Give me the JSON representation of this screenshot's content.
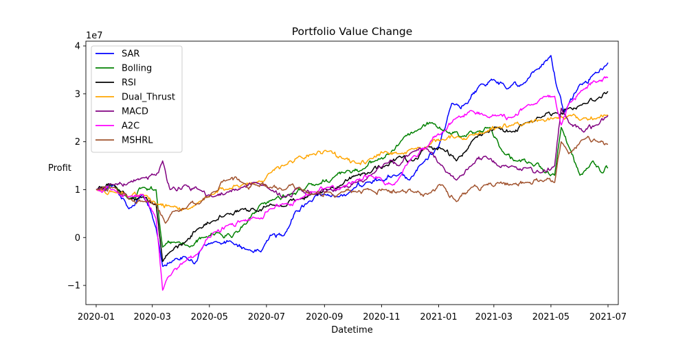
{
  "chart_data": {
    "type": "line",
    "title": "Portfolio Value Change",
    "xlabel": "Datetime",
    "ylabel": "Profit",
    "y_scale_label": "1e7",
    "x_range": [
      "2019-12-21",
      "2021-07-12"
    ],
    "ylim": [
      -1.4,
      4.1
    ],
    "y_unit_multiplier": 10000000,
    "grid": false,
    "legend_position": "upper-left",
    "x_ticks": [
      "2020-01",
      "2020-03",
      "2020-05",
      "2020-07",
      "2020-09",
      "2020-11",
      "2021-01",
      "2021-03",
      "2021-05",
      "2021-07"
    ],
    "y_ticks": [
      -1,
      0,
      1,
      2,
      3,
      4
    ],
    "y_tick_labels": [
      "−1",
      "0",
      "1",
      "2",
      "3",
      "4"
    ],
    "series": [
      {
        "name": "SAR",
        "color": "#0000ff",
        "points": [
          [
            "2020-01-01",
            1.0
          ],
          [
            "2020-01-20",
            1.1
          ],
          [
            "2020-02-05",
            0.6
          ],
          [
            "2020-02-20",
            0.9
          ],
          [
            "2020-03-05",
            0.2
          ],
          [
            "2020-03-12",
            -0.6
          ],
          [
            "2020-03-25",
            -0.45
          ],
          [
            "2020-04-05",
            -0.4
          ],
          [
            "2020-04-15",
            -0.55
          ],
          [
            "2020-04-25",
            -0.15
          ],
          [
            "2020-05-10",
            -0.1
          ],
          [
            "2020-05-25",
            -0.1
          ],
          [
            "2020-06-10",
            -0.25
          ],
          [
            "2020-06-25",
            -0.3
          ],
          [
            "2020-07-05",
            0.05
          ],
          [
            "2020-07-20",
            0.05
          ],
          [
            "2020-08-01",
            0.55
          ],
          [
            "2020-08-15",
            0.75
          ],
          [
            "2020-09-01",
            0.9
          ],
          [
            "2020-09-15",
            0.85
          ],
          [
            "2020-10-01",
            1.0
          ],
          [
            "2020-10-15",
            1.15
          ],
          [
            "2020-11-01",
            1.2
          ],
          [
            "2020-11-15",
            1.3
          ],
          [
            "2020-12-01",
            1.2
          ],
          [
            "2020-12-15",
            1.55
          ],
          [
            "2021-01-01",
            1.9
          ],
          [
            "2021-01-15",
            2.8
          ],
          [
            "2021-02-01",
            2.8
          ],
          [
            "2021-02-15",
            3.2
          ],
          [
            "2021-03-01",
            3.3
          ],
          [
            "2021-03-15",
            3.1
          ],
          [
            "2021-04-01",
            3.2
          ],
          [
            "2021-04-15",
            3.5
          ],
          [
            "2021-05-01",
            3.8
          ],
          [
            "2021-05-08",
            3.1
          ],
          [
            "2021-05-15",
            2.6
          ],
          [
            "2021-06-01",
            3.2
          ],
          [
            "2021-06-15",
            3.4
          ],
          [
            "2021-07-01",
            3.65
          ]
        ]
      },
      {
        "name": "Bolling",
        "color": "#008000",
        "points": [
          [
            "2020-01-01",
            1.0
          ],
          [
            "2020-01-20",
            1.1
          ],
          [
            "2020-02-05",
            0.8
          ],
          [
            "2020-02-20",
            1.05
          ],
          [
            "2020-03-05",
            1.0
          ],
          [
            "2020-03-12",
            -0.2
          ],
          [
            "2020-03-25",
            -0.1
          ],
          [
            "2020-04-10",
            -0.2
          ],
          [
            "2020-04-25",
            0.0
          ],
          [
            "2020-05-10",
            0.1
          ],
          [
            "2020-05-25",
            0.0
          ],
          [
            "2020-06-10",
            0.3
          ],
          [
            "2020-06-25",
            0.7
          ],
          [
            "2020-07-10",
            0.8
          ],
          [
            "2020-07-25",
            0.9
          ],
          [
            "2020-08-10",
            1.0
          ],
          [
            "2020-08-25",
            1.1
          ],
          [
            "2020-09-10",
            1.25
          ],
          [
            "2020-09-25",
            1.4
          ],
          [
            "2020-10-10",
            1.4
          ],
          [
            "2020-10-25",
            1.6
          ],
          [
            "2020-11-10",
            1.75
          ],
          [
            "2020-11-25",
            2.1
          ],
          [
            "2020-12-10",
            2.25
          ],
          [
            "2020-12-25",
            2.4
          ],
          [
            "2021-01-10",
            2.2
          ],
          [
            "2021-01-25",
            2.1
          ],
          [
            "2021-02-10",
            2.2
          ],
          [
            "2021-02-25",
            2.3
          ],
          [
            "2021-03-10",
            1.8
          ],
          [
            "2021-03-25",
            1.6
          ],
          [
            "2021-04-10",
            1.55
          ],
          [
            "2021-04-25",
            1.35
          ],
          [
            "2021-05-05",
            1.3
          ],
          [
            "2021-05-12",
            2.3
          ],
          [
            "2021-05-20",
            1.9
          ],
          [
            "2021-06-01",
            1.3
          ],
          [
            "2021-06-15",
            1.6
          ],
          [
            "2021-06-25",
            1.35
          ],
          [
            "2021-07-01",
            1.45
          ]
        ]
      },
      {
        "name": "RSI",
        "color": "#000000",
        "points": [
          [
            "2020-01-01",
            1.0
          ],
          [
            "2020-01-20",
            1.1
          ],
          [
            "2020-02-05",
            0.8
          ],
          [
            "2020-02-20",
            0.85
          ],
          [
            "2020-03-05",
            0.7
          ],
          [
            "2020-03-12",
            -0.5
          ],
          [
            "2020-03-20",
            -0.3
          ],
          [
            "2020-04-05",
            -0.1
          ],
          [
            "2020-04-20",
            0.2
          ],
          [
            "2020-05-05",
            0.35
          ],
          [
            "2020-05-20",
            0.5
          ],
          [
            "2020-06-05",
            0.6
          ],
          [
            "2020-06-20",
            0.55
          ],
          [
            "2020-07-05",
            0.7
          ],
          [
            "2020-07-20",
            0.65
          ],
          [
            "2020-08-05",
            0.8
          ],
          [
            "2020-08-20",
            0.9
          ],
          [
            "2020-09-05",
            1.0
          ],
          [
            "2020-09-20",
            1.1
          ],
          [
            "2020-10-05",
            1.3
          ],
          [
            "2020-10-20",
            1.35
          ],
          [
            "2020-11-05",
            1.5
          ],
          [
            "2020-11-20",
            1.7
          ],
          [
            "2020-12-05",
            1.6
          ],
          [
            "2020-12-20",
            1.9
          ],
          [
            "2021-01-05",
            1.85
          ],
          [
            "2021-01-20",
            1.6
          ],
          [
            "2021-02-05",
            2.0
          ],
          [
            "2021-02-20",
            2.2
          ],
          [
            "2021-03-05",
            2.3
          ],
          [
            "2021-03-20",
            2.2
          ],
          [
            "2021-04-05",
            2.4
          ],
          [
            "2021-04-20",
            2.5
          ],
          [
            "2021-05-05",
            2.6
          ],
          [
            "2021-05-20",
            2.7
          ],
          [
            "2021-06-05",
            2.8
          ],
          [
            "2021-06-20",
            2.9
          ],
          [
            "2021-07-01",
            3.05
          ]
        ]
      },
      {
        "name": "Dual_Thrust",
        "color": "#ffa500",
        "points": [
          [
            "2020-01-01",
            1.0
          ],
          [
            "2020-01-20",
            0.95
          ],
          [
            "2020-02-05",
            0.85
          ],
          [
            "2020-02-20",
            0.9
          ],
          [
            "2020-03-05",
            0.7
          ],
          [
            "2020-03-20",
            0.65
          ],
          [
            "2020-04-05",
            0.6
          ],
          [
            "2020-04-20",
            0.75
          ],
          [
            "2020-05-05",
            0.9
          ],
          [
            "2020-05-20",
            1.0
          ],
          [
            "2020-06-05",
            1.1
          ],
          [
            "2020-06-20",
            1.15
          ],
          [
            "2020-07-05",
            1.35
          ],
          [
            "2020-07-20",
            1.5
          ],
          [
            "2020-08-05",
            1.7
          ],
          [
            "2020-08-20",
            1.75
          ],
          [
            "2020-09-05",
            1.8
          ],
          [
            "2020-09-20",
            1.65
          ],
          [
            "2020-10-05",
            1.55
          ],
          [
            "2020-10-20",
            1.65
          ],
          [
            "2020-11-05",
            1.8
          ],
          [
            "2020-11-20",
            1.75
          ],
          [
            "2020-12-05",
            1.85
          ],
          [
            "2020-12-20",
            1.9
          ],
          [
            "2021-01-05",
            2.05
          ],
          [
            "2021-01-20",
            2.1
          ],
          [
            "2021-02-05",
            2.15
          ],
          [
            "2021-02-20",
            2.2
          ],
          [
            "2021-03-05",
            2.3
          ],
          [
            "2021-03-20",
            2.35
          ],
          [
            "2021-04-05",
            2.4
          ],
          [
            "2021-04-20",
            2.45
          ],
          [
            "2021-05-05",
            2.5
          ],
          [
            "2021-05-20",
            2.55
          ],
          [
            "2021-06-05",
            2.5
          ],
          [
            "2021-06-20",
            2.5
          ],
          [
            "2021-07-01",
            2.55
          ]
        ]
      },
      {
        "name": "MACD",
        "color": "#800080",
        "points": [
          [
            "2020-01-01",
            1.0
          ],
          [
            "2020-01-20",
            1.1
          ],
          [
            "2020-02-05",
            1.15
          ],
          [
            "2020-02-20",
            1.25
          ],
          [
            "2020-03-05",
            1.3
          ],
          [
            "2020-03-12",
            1.6
          ],
          [
            "2020-03-20",
            1.0
          ],
          [
            "2020-04-05",
            1.1
          ],
          [
            "2020-04-20",
            1.0
          ],
          [
            "2020-05-05",
            0.85
          ],
          [
            "2020-05-20",
            0.95
          ],
          [
            "2020-06-05",
            1.05
          ],
          [
            "2020-06-20",
            1.15
          ],
          [
            "2020-07-05",
            1.0
          ],
          [
            "2020-07-20",
            0.85
          ],
          [
            "2020-08-05",
            1.05
          ],
          [
            "2020-08-20",
            0.9
          ],
          [
            "2020-09-05",
            1.0
          ],
          [
            "2020-09-20",
            1.05
          ],
          [
            "2020-10-05",
            1.15
          ],
          [
            "2020-10-20",
            1.3
          ],
          [
            "2020-11-05",
            1.55
          ],
          [
            "2020-11-20",
            1.5
          ],
          [
            "2020-12-05",
            1.8
          ],
          [
            "2020-12-20",
            1.85
          ],
          [
            "2021-01-05",
            1.5
          ],
          [
            "2021-01-20",
            1.2
          ],
          [
            "2021-02-05",
            1.5
          ],
          [
            "2021-02-20",
            1.7
          ],
          [
            "2021-03-05",
            1.5
          ],
          [
            "2021-03-20",
            1.5
          ],
          [
            "2021-04-05",
            1.45
          ],
          [
            "2021-04-20",
            1.35
          ],
          [
            "2021-05-05",
            1.5
          ],
          [
            "2021-05-12",
            2.7
          ],
          [
            "2021-05-20",
            2.4
          ],
          [
            "2021-06-05",
            2.2
          ],
          [
            "2021-06-20",
            2.35
          ],
          [
            "2021-07-01",
            2.55
          ]
        ]
      },
      {
        "name": "A2C",
        "color": "#ff00ff",
        "points": [
          [
            "2020-01-01",
            1.0
          ],
          [
            "2020-01-20",
            1.0
          ],
          [
            "2020-02-05",
            0.85
          ],
          [
            "2020-02-20",
            0.9
          ],
          [
            "2020-03-05",
            0.4
          ],
          [
            "2020-03-12",
            -1.1
          ],
          [
            "2020-03-20",
            -0.8
          ],
          [
            "2020-04-05",
            -0.5
          ],
          [
            "2020-04-20",
            -0.3
          ],
          [
            "2020-05-05",
            0.1
          ],
          [
            "2020-05-20",
            0.25
          ],
          [
            "2020-06-05",
            0.35
          ],
          [
            "2020-06-20",
            0.4
          ],
          [
            "2020-07-05",
            0.6
          ],
          [
            "2020-07-20",
            0.7
          ],
          [
            "2020-08-05",
            0.8
          ],
          [
            "2020-08-20",
            0.95
          ],
          [
            "2020-09-05",
            1.05
          ],
          [
            "2020-09-20",
            1.05
          ],
          [
            "2020-10-05",
            1.2
          ],
          [
            "2020-10-20",
            1.3
          ],
          [
            "2020-11-05",
            1.1
          ],
          [
            "2020-11-20",
            1.25
          ],
          [
            "2020-12-05",
            1.7
          ],
          [
            "2020-12-20",
            1.9
          ],
          [
            "2021-01-05",
            2.2
          ],
          [
            "2021-01-20",
            2.5
          ],
          [
            "2021-02-05",
            2.65
          ],
          [
            "2021-02-20",
            2.55
          ],
          [
            "2021-03-05",
            2.55
          ],
          [
            "2021-03-20",
            2.5
          ],
          [
            "2021-04-05",
            2.75
          ],
          [
            "2021-04-20",
            2.9
          ],
          [
            "2021-05-05",
            2.95
          ],
          [
            "2021-05-12",
            2.35
          ],
          [
            "2021-05-20",
            2.8
          ],
          [
            "2021-06-05",
            3.1
          ],
          [
            "2021-06-20",
            3.25
          ],
          [
            "2021-07-01",
            3.35
          ]
        ]
      },
      {
        "name": "MSHRL",
        "color": "#a0522d",
        "points": [
          [
            "2020-01-01",
            1.0
          ],
          [
            "2020-01-20",
            1.05
          ],
          [
            "2020-02-05",
            0.8
          ],
          [
            "2020-02-20",
            0.75
          ],
          [
            "2020-03-05",
            0.7
          ],
          [
            "2020-03-15",
            0.3
          ],
          [
            "2020-03-25",
            0.55
          ],
          [
            "2020-04-05",
            0.6
          ],
          [
            "2020-04-20",
            0.7
          ],
          [
            "2020-05-05",
            0.95
          ],
          [
            "2020-05-20",
            1.2
          ],
          [
            "2020-06-05",
            1.15
          ],
          [
            "2020-06-20",
            1.1
          ],
          [
            "2020-07-05",
            1.05
          ],
          [
            "2020-07-20",
            1.0
          ],
          [
            "2020-08-05",
            1.05
          ],
          [
            "2020-08-20",
            0.9
          ],
          [
            "2020-09-05",
            0.95
          ],
          [
            "2020-09-20",
            0.95
          ],
          [
            "2020-10-05",
            0.95
          ],
          [
            "2020-10-20",
            1.0
          ],
          [
            "2020-11-05",
            1.0
          ],
          [
            "2020-11-20",
            0.95
          ],
          [
            "2020-12-05",
            0.95
          ],
          [
            "2020-12-20",
            0.9
          ],
          [
            "2021-01-05",
            1.1
          ],
          [
            "2021-01-20",
            0.75
          ],
          [
            "2021-02-05",
            1.05
          ],
          [
            "2021-02-20",
            1.1
          ],
          [
            "2021-03-05",
            1.15
          ],
          [
            "2021-03-20",
            1.1
          ],
          [
            "2021-04-05",
            1.15
          ],
          [
            "2021-04-20",
            1.2
          ],
          [
            "2021-05-05",
            1.15
          ],
          [
            "2021-05-12",
            2.0
          ],
          [
            "2021-05-20",
            1.75
          ],
          [
            "2021-06-05",
            2.05
          ],
          [
            "2021-06-20",
            2.0
          ],
          [
            "2021-07-01",
            1.95
          ]
        ]
      }
    ]
  }
}
